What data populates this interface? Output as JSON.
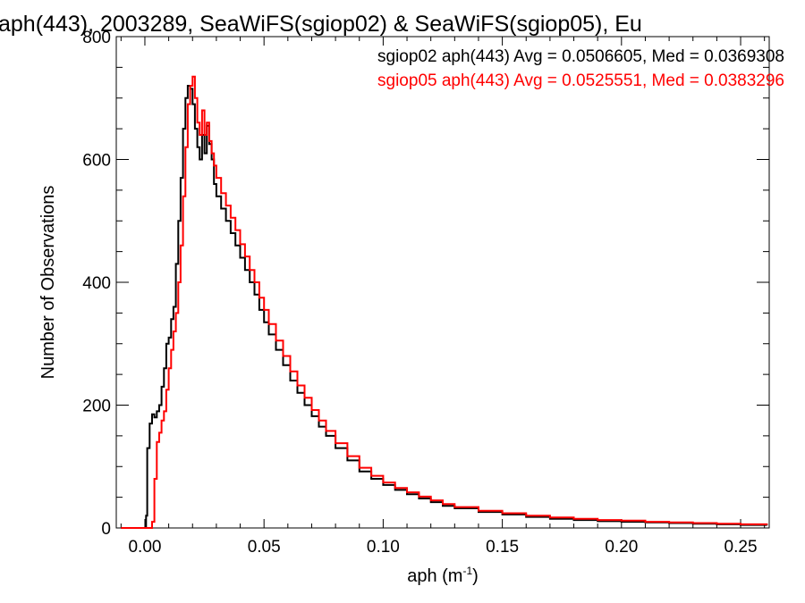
{
  "chart_data": {
    "type": "histogram",
    "title": "aph(443), 2003289, SeaWiFS(sgiop02) & SeaWiFS(sgiop05), Eu",
    "xlabel_base": "aph (m",
    "xlabel_sup": "-1",
    "xlabel_close": ")",
    "ylabel": "Number of Observations",
    "xlim": [
      -0.012,
      0.262
    ],
    "ylim": [
      0,
      800
    ],
    "xticks": [
      0.0,
      0.05,
      0.1,
      0.15,
      0.2,
      0.25
    ],
    "xtick_labels": [
      "0.00",
      "0.05",
      "0.10",
      "0.15",
      "0.20",
      "0.25"
    ],
    "yticks": [
      0,
      200,
      400,
      600,
      800
    ],
    "ytick_labels": [
      "0",
      "200",
      "400",
      "600",
      "800"
    ],
    "grid": false,
    "legend_position": "top-right",
    "series": [
      {
        "name": "sgiop02 aph(443) Avg = 0.0506605, Med = 0.0369308",
        "color": "#000000",
        "points": [
          [
            -0.01,
            0
          ],
          [
            0.0,
            0
          ],
          [
            0.0005,
            20
          ],
          [
            0.001,
            130
          ],
          [
            0.002,
            170
          ],
          [
            0.003,
            185
          ],
          [
            0.004,
            180
          ],
          [
            0.005,
            190
          ],
          [
            0.006,
            200
          ],
          [
            0.007,
            230
          ],
          [
            0.008,
            260
          ],
          [
            0.009,
            300
          ],
          [
            0.01,
            310
          ],
          [
            0.011,
            340
          ],
          [
            0.012,
            360
          ],
          [
            0.013,
            430
          ],
          [
            0.014,
            500
          ],
          [
            0.015,
            570
          ],
          [
            0.016,
            650
          ],
          [
            0.017,
            700
          ],
          [
            0.018,
            720
          ],
          [
            0.019,
            715
          ],
          [
            0.02,
            690
          ],
          [
            0.021,
            650
          ],
          [
            0.022,
            620
          ],
          [
            0.023,
            600
          ],
          [
            0.024,
            640
          ],
          [
            0.025,
            610
          ],
          [
            0.026,
            655
          ],
          [
            0.027,
            625
          ],
          [
            0.028,
            600
          ],
          [
            0.029,
            560
          ],
          [
            0.03,
            540
          ],
          [
            0.032,
            520
          ],
          [
            0.034,
            500
          ],
          [
            0.036,
            480
          ],
          [
            0.038,
            460
          ],
          [
            0.04,
            440
          ],
          [
            0.042,
            420
          ],
          [
            0.044,
            400
          ],
          [
            0.046,
            380
          ],
          [
            0.048,
            355
          ],
          [
            0.05,
            335
          ],
          [
            0.052,
            315
          ],
          [
            0.055,
            290
          ],
          [
            0.058,
            265
          ],
          [
            0.061,
            240
          ],
          [
            0.064,
            220
          ],
          [
            0.067,
            200
          ],
          [
            0.07,
            182
          ],
          [
            0.073,
            165
          ],
          [
            0.076,
            150
          ],
          [
            0.08,
            130
          ],
          [
            0.085,
            110
          ],
          [
            0.09,
            92
          ],
          [
            0.095,
            80
          ],
          [
            0.1,
            70
          ],
          [
            0.105,
            62
          ],
          [
            0.11,
            55
          ],
          [
            0.115,
            48
          ],
          [
            0.12,
            42
          ],
          [
            0.125,
            36
          ],
          [
            0.13,
            32
          ],
          [
            0.14,
            26
          ],
          [
            0.15,
            22
          ],
          [
            0.16,
            18
          ],
          [
            0.17,
            15
          ],
          [
            0.18,
            13
          ],
          [
            0.19,
            11
          ],
          [
            0.2,
            10
          ],
          [
            0.21,
            9
          ],
          [
            0.22,
            8
          ],
          [
            0.23,
            7
          ],
          [
            0.24,
            6
          ],
          [
            0.25,
            5
          ],
          [
            0.261,
            4
          ]
        ]
      },
      {
        "name": "sgiop05 aph(443) Avg = 0.0525551, Med = 0.0383296",
        "color": "#ff0000",
        "points": [
          [
            -0.01,
            0
          ],
          [
            0.002,
            0
          ],
          [
            0.003,
            10
          ],
          [
            0.004,
            80
          ],
          [
            0.005,
            140
          ],
          [
            0.006,
            155
          ],
          [
            0.007,
            175
          ],
          [
            0.008,
            190
          ],
          [
            0.009,
            225
          ],
          [
            0.01,
            260
          ],
          [
            0.011,
            290
          ],
          [
            0.012,
            320
          ],
          [
            0.013,
            350
          ],
          [
            0.014,
            400
          ],
          [
            0.015,
            460
          ],
          [
            0.016,
            540
          ],
          [
            0.017,
            620
          ],
          [
            0.018,
            690
          ],
          [
            0.019,
            720
          ],
          [
            0.02,
            735
          ],
          [
            0.021,
            700
          ],
          [
            0.022,
            660
          ],
          [
            0.023,
            640
          ],
          [
            0.024,
            680
          ],
          [
            0.025,
            640
          ],
          [
            0.026,
            660
          ],
          [
            0.027,
            630
          ],
          [
            0.028,
            610
          ],
          [
            0.029,
            590
          ],
          [
            0.03,
            570
          ],
          [
            0.032,
            545
          ],
          [
            0.034,
            525
          ],
          [
            0.036,
            505
          ],
          [
            0.038,
            485
          ],
          [
            0.04,
            462
          ],
          [
            0.042,
            442
          ],
          [
            0.044,
            420
          ],
          [
            0.046,
            400
          ],
          [
            0.048,
            375
          ],
          [
            0.05,
            355
          ],
          [
            0.052,
            332
          ],
          [
            0.055,
            305
          ],
          [
            0.058,
            280
          ],
          [
            0.061,
            255
          ],
          [
            0.064,
            232
          ],
          [
            0.067,
            212
          ],
          [
            0.07,
            192
          ],
          [
            0.073,
            175
          ],
          [
            0.076,
            158
          ],
          [
            0.08,
            138
          ],
          [
            0.085,
            117
          ],
          [
            0.09,
            98
          ],
          [
            0.095,
            85
          ],
          [
            0.1,
            74
          ],
          [
            0.105,
            65
          ],
          [
            0.11,
            58
          ],
          [
            0.115,
            51
          ],
          [
            0.12,
            45
          ],
          [
            0.125,
            39
          ],
          [
            0.13,
            34
          ],
          [
            0.14,
            28
          ],
          [
            0.15,
            24
          ],
          [
            0.16,
            20
          ],
          [
            0.17,
            17
          ],
          [
            0.18,
            15
          ],
          [
            0.19,
            13
          ],
          [
            0.2,
            12
          ],
          [
            0.21,
            10
          ],
          [
            0.22,
            9
          ],
          [
            0.23,
            8
          ],
          [
            0.24,
            7
          ],
          [
            0.25,
            6
          ],
          [
            0.261,
            5
          ]
        ]
      }
    ]
  }
}
